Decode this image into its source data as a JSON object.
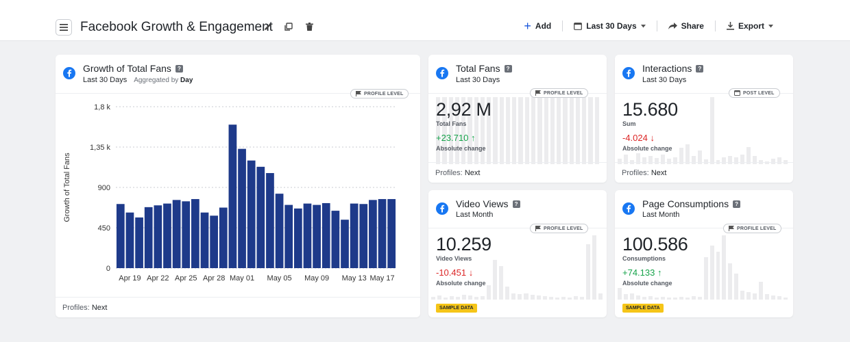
{
  "header": {
    "title": "Facebook Growth & Engagement",
    "add_label": "Add",
    "date_range_label": "Last 30 Days",
    "share_label": "Share",
    "export_label": "Export"
  },
  "growth_card": {
    "title": "Growth of Total Fans",
    "help": "?",
    "subtitle": "Last 30 Days",
    "aggregated_prefix": "Aggregated by",
    "aggregated_value": "Day",
    "level": "PROFILE LEVEL",
    "footer_prefix": "Profiles:",
    "footer_value": "Next"
  },
  "total_fans_card": {
    "title": "Total Fans",
    "help": "?",
    "subtitle": "Last 30 Days",
    "level": "PROFILE LEVEL",
    "value": "2,92 M",
    "metric": "Total Fans",
    "change": "+23.710 ↑",
    "change_label": "Absolute change",
    "footer_prefix": "Profiles:",
    "footer_value": "Next"
  },
  "interactions_card": {
    "title": "Interactions",
    "help": "?",
    "subtitle": "Last 30 Days",
    "level": "POST LEVEL",
    "value": "15.680",
    "metric": "Sum",
    "change": "-4.024 ↓",
    "change_label": "Absolute change",
    "footer_prefix": "Profiles:",
    "footer_value": "Next"
  },
  "video_views_card": {
    "title": "Video Views",
    "help": "?",
    "subtitle": "Last Month",
    "level": "PROFILE LEVEL",
    "value": "10.259",
    "metric": "Video Views",
    "change": "-10.451 ↓",
    "change_label": "Absolute change",
    "sample": "SAMPLE DATA"
  },
  "page_consumptions_card": {
    "title": "Page Consumptions",
    "help": "?",
    "subtitle": "Last Month",
    "level": "PROFILE LEVEL",
    "value": "100.586",
    "metric": "Consumptions",
    "change": "+74.133 ↑",
    "change_label": "Absolute change",
    "sample": "SAMPLE DATA"
  },
  "colors": {
    "bar": "#1e3a8a",
    "facebook": "#1877f2",
    "positive": "#16a34a",
    "negative": "#dc2626",
    "sample_badge": "#f5c518"
  },
  "chart_data": {
    "type": "bar",
    "ylabel": "Growth of Total Fans",
    "ylim": [
      0,
      1800
    ],
    "yticks": [
      0,
      450,
      900,
      1350,
      1800
    ],
    "ytick_labels": [
      "0",
      "450",
      "900",
      "1,35 k",
      "1,8 k"
    ],
    "xtick_labels": [
      "Apr 19",
      "Apr 22",
      "Apr 25",
      "Apr 28",
      "May 01",
      "May 05",
      "May 09",
      "May 13",
      "May 17"
    ],
    "xtick_index": [
      1,
      4,
      7,
      10,
      13,
      17,
      21,
      25,
      28
    ],
    "values": [
      715,
      620,
      565,
      680,
      700,
      720,
      760,
      745,
      770,
      620,
      585,
      675,
      1600,
      1330,
      1200,
      1130,
      1060,
      830,
      705,
      665,
      720,
      705,
      725,
      640,
      540,
      720,
      715,
      760,
      770,
      770
    ]
  }
}
